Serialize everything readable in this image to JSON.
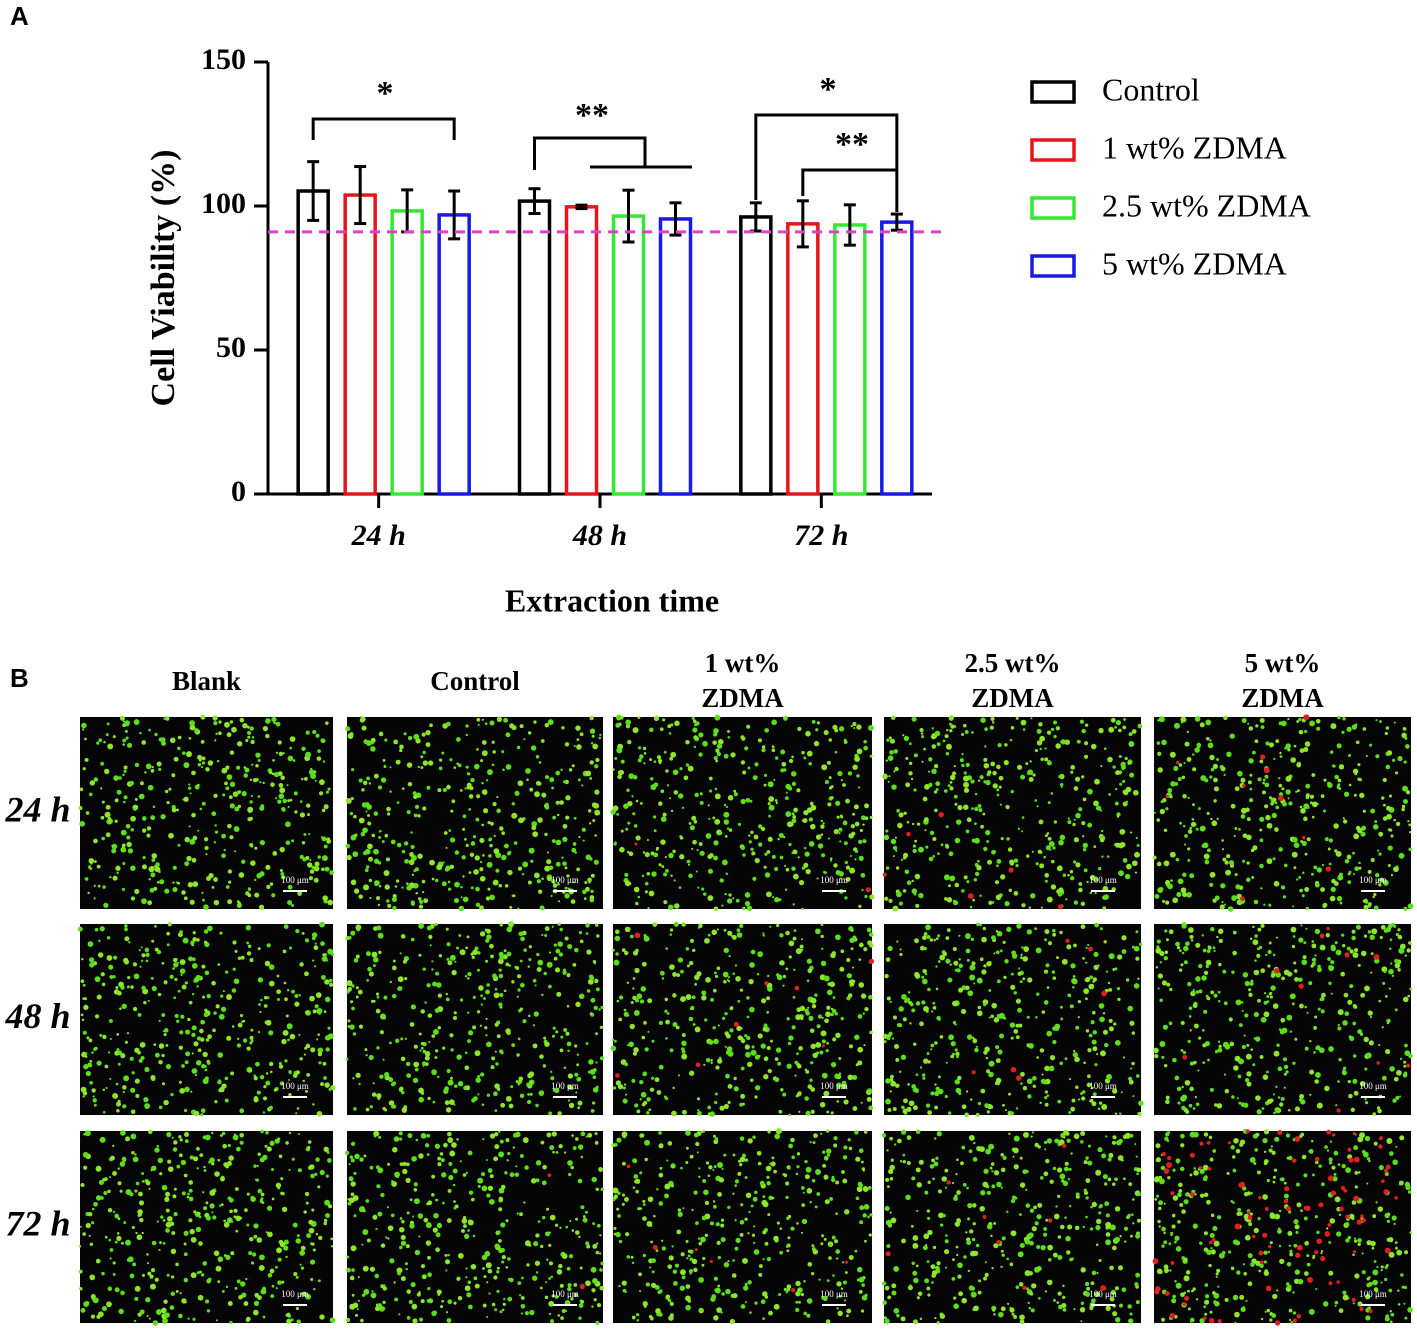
{
  "panel_labels": [
    "A",
    "B"
  ],
  "chart_data": {
    "type": "bar",
    "y_label": "Cell Viability (%)",
    "x_label": "Extraction time",
    "categories": [
      "24 h",
      "48 h",
      "72 h"
    ],
    "series": [
      {
        "name": "Control",
        "color": "#000000",
        "values": [
          105.2,
          101.7,
          96.2
        ],
        "errors": [
          10.2,
          4.3,
          4.9
        ]
      },
      {
        "name": "1 wt% ZDMA",
        "color": "#e8141b",
        "values": [
          103.8,
          99.7,
          93.8
        ],
        "errors": [
          9.9,
          0.6,
          8.0
        ]
      },
      {
        "name": "2.5 wt% ZDMA",
        "color": "#35e835",
        "values": [
          98.3,
          96.5,
          93.4
        ],
        "errors": [
          7.3,
          9.0,
          7.0
        ]
      },
      {
        "name": "5 wt% ZDMA",
        "color": "#1a1ae6",
        "values": [
          96.9,
          95.5,
          94.4
        ],
        "errors": [
          8.3,
          5.6,
          2.8
        ]
      }
    ],
    "reference_line": 91,
    "reference_color": "#e040c8",
    "annotations": [
      "*",
      "**",
      "*",
      "**"
    ],
    "ylim": [
      0,
      150
    ],
    "yticks": [
      0,
      50,
      100,
      150
    ]
  },
  "image_grid": {
    "columns": [
      [
        "Blank"
      ],
      [
        "Control"
      ],
      [
        "1 wt%",
        "ZDMA"
      ],
      [
        "2.5 wt%",
        "ZDMA"
      ],
      [
        "5 wt%",
        "ZDMA"
      ]
    ],
    "rows": [
      "24 h",
      "48 h",
      "72 h"
    ],
    "scale_bar_label": "100 μm"
  }
}
